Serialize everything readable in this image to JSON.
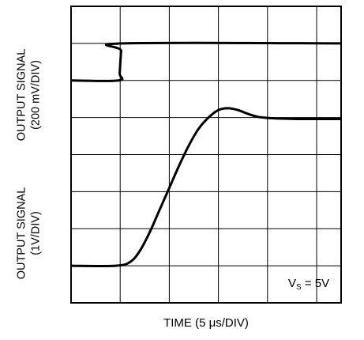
{
  "chart_data": {
    "type": "line",
    "xlabel": "TIME (5 μs/DIV)",
    "y_labels": [
      {
        "line1": "OUTPUT SIGNAL",
        "line2": "(200 mV/DIV)"
      },
      {
        "line1": "OUTPUT SIGNAL",
        "line2": "(1V/DIV)"
      }
    ],
    "annotation": {
      "main": "V",
      "sub": "S",
      "rest": " = 5V"
    },
    "grid": true,
    "divisions": {
      "x": 5.5,
      "y": 8
    },
    "xlim": [
      0,
      5.5
    ],
    "ylim": [
      0,
      8
    ],
    "series": [
      {
        "x": [
          0,
          0.97,
          0.99,
          1.02,
          1.05,
          5.5
        ],
        "y": [
          6.0,
          6.0,
          6.2,
          6.8,
          7.0,
          7.0
        ]
      },
      {
        "x": [
          0,
          0.9,
          1.2,
          1.4,
          1.6,
          1.8,
          2.0,
          2.2,
          2.4,
          2.6,
          2.8,
          3.0,
          3.2,
          3.4,
          3.6,
          3.8,
          4.0,
          4.3,
          4.6,
          5.0,
          5.5
        ],
        "y": [
          1.0,
          1.0,
          1.1,
          1.4,
          1.9,
          2.5,
          3.1,
          3.7,
          4.25,
          4.7,
          5.0,
          5.2,
          5.25,
          5.2,
          5.1,
          5.02,
          4.99,
          4.97,
          4.96,
          4.96,
          4.96
        ]
      }
    ]
  }
}
